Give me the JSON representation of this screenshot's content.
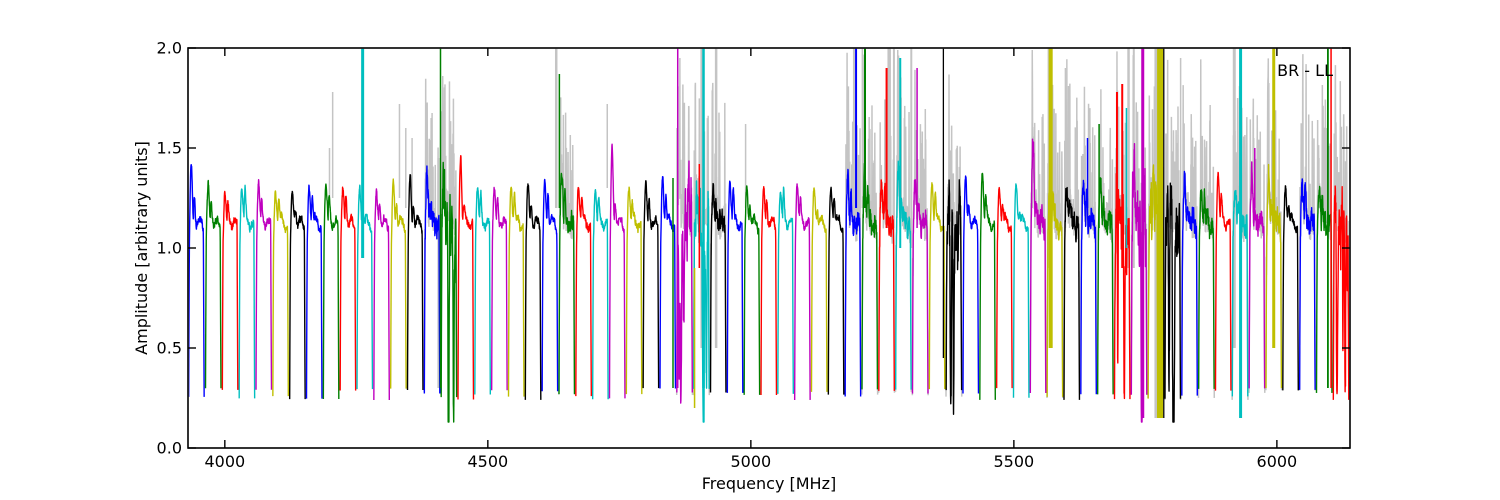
{
  "figure": {
    "bg": "#ffffff"
  },
  "chart_data": {
    "type": "line",
    "corner_label": "BR - LL",
    "xlabel": "Frequency [MHz]",
    "ylabel": "Amplitude [arbitrary units]",
    "xlim": [
      3930,
      6139
    ],
    "ylim": [
      0.0,
      2.0
    ],
    "xticks": [
      4000,
      4500,
      5000,
      5500,
      6000
    ],
    "yticks": [
      0.0,
      0.5,
      1.0,
      1.5,
      2.0
    ],
    "ytick_labels": [
      "0.0",
      "0.5",
      "1.0",
      "1.5",
      "2.0"
    ],
    "grid": false,
    "legend_position": "none",
    "axis_color": "#000000",
    "palette": {
      "b": "#0000ff",
      "g": "#008000",
      "r": "#ff0000",
      "c": "#00bfbf",
      "m": "#bf00bf",
      "y": "#bfbf00",
      "k": "#000000",
      "gray": "#c4c4c4"
    },
    "window_width_mhz": 32,
    "plateau_level": 1.2,
    "edge_level": 0.27,
    "windows": [
      {
        "s": 3930,
        "c": "b",
        "p": 1.42,
        "n": 0
      },
      {
        "s": 3962,
        "c": "g",
        "p": 1.32,
        "n": 0
      },
      {
        "s": 3994,
        "c": "r",
        "p": 1.27,
        "n": 0
      },
      {
        "s": 4026,
        "c": "c",
        "p": 1.3,
        "n": 0
      },
      {
        "s": 4058,
        "c": "m",
        "p": 1.33,
        "n": 0
      },
      {
        "s": 4090,
        "c": "y",
        "p": 1.28,
        "n": 0
      },
      {
        "s": 4122,
        "c": "k",
        "p": 1.28,
        "n": 0
      },
      {
        "s": 4154,
        "c": "b",
        "p": 1.3,
        "n": 0
      },
      {
        "s": 4186,
        "c": "g",
        "p": 1.32,
        "n": 0
      },
      {
        "s": 4218,
        "c": "r",
        "p": 1.3,
        "n": 0
      },
      {
        "s": 4250,
        "c": "c",
        "p": 1.3,
        "n": 0
      },
      {
        "s": 4282,
        "c": "m",
        "p": 1.28,
        "n": 0
      },
      {
        "s": 4314,
        "c": "y",
        "p": 1.33,
        "n": 0
      },
      {
        "s": 4346,
        "c": "k",
        "p": 1.36,
        "n": 0
      },
      {
        "s": 4378,
        "c": "b",
        "p": 1.38,
        "n": 1
      },
      {
        "s": 4410,
        "c": "g",
        "p": 1.4,
        "n": 2
      },
      {
        "s": 4442,
        "c": "r",
        "p": 1.45,
        "n": 0
      },
      {
        "s": 4474,
        "c": "c",
        "p": 1.3,
        "n": 0
      },
      {
        "s": 4506,
        "c": "m",
        "p": 1.3,
        "n": 0
      },
      {
        "s": 4538,
        "c": "y",
        "p": 1.3,
        "n": 0
      },
      {
        "s": 4570,
        "c": "k",
        "p": 1.32,
        "n": 0
      },
      {
        "s": 4602,
        "c": "b",
        "p": 1.33,
        "n": 0
      },
      {
        "s": 4634,
        "c": "g",
        "p": 1.4,
        "n": 1
      },
      {
        "s": 4666,
        "c": "r",
        "p": 1.3,
        "n": 0
      },
      {
        "s": 4698,
        "c": "c",
        "p": 1.28,
        "n": 0
      },
      {
        "s": 4730,
        "c": "m",
        "p": 1.5,
        "n": 0
      },
      {
        "s": 4762,
        "c": "y",
        "p": 1.3,
        "n": 0
      },
      {
        "s": 4794,
        "c": "k",
        "p": 1.33,
        "n": 0
      },
      {
        "s": 4826,
        "c": "b",
        "p": 1.35,
        "n": 0
      },
      {
        "s": 4858,
        "c": "m",
        "p": 1.35,
        "n": 2
      },
      {
        "s": 4890,
        "c": "c",
        "p": 1.3,
        "n": 2
      },
      {
        "s": 4922,
        "c": "k",
        "p": 1.3,
        "n": 1
      },
      {
        "s": 4954,
        "c": "b",
        "p": 1.33,
        "n": 0
      },
      {
        "s": 4986,
        "c": "g",
        "p": 1.3,
        "n": 0
      },
      {
        "s": 5018,
        "c": "r",
        "p": 1.3,
        "n": 0
      },
      {
        "s": 5050,
        "c": "c",
        "p": 1.28,
        "n": 0
      },
      {
        "s": 5082,
        "c": "m",
        "p": 1.32,
        "n": 0
      },
      {
        "s": 5114,
        "c": "y",
        "p": 1.3,
        "n": 0
      },
      {
        "s": 5146,
        "c": "k",
        "p": 1.3,
        "n": 0
      },
      {
        "s": 5178,
        "c": "b",
        "p": 1.35,
        "n": 1
      },
      {
        "s": 5210,
        "c": "g",
        "p": 1.38,
        "n": 1
      },
      {
        "s": 5242,
        "c": "r",
        "p": 1.32,
        "n": 1
      },
      {
        "s": 5274,
        "c": "c",
        "p": 1.4,
        "n": 1
      },
      {
        "s": 5306,
        "c": "m",
        "p": 1.35,
        "n": 1
      },
      {
        "s": 5338,
        "c": "y",
        "p": 1.32,
        "n": 0
      },
      {
        "s": 5370,
        "c": "k",
        "p": 1.3,
        "n": 2
      },
      {
        "s": 5402,
        "c": "b",
        "p": 1.35,
        "n": 0
      },
      {
        "s": 5434,
        "c": "g",
        "p": 1.38,
        "n": 0
      },
      {
        "s": 5466,
        "c": "r",
        "p": 1.3,
        "n": 0
      },
      {
        "s": 5498,
        "c": "c",
        "p": 1.32,
        "n": 0
      },
      {
        "s": 5530,
        "c": "m",
        "p": 1.55,
        "n": 1
      },
      {
        "s": 5562,
        "c": "y",
        "p": 1.35,
        "n": 1
      },
      {
        "s": 5594,
        "c": "k",
        "p": 1.3,
        "n": 1
      },
      {
        "s": 5626,
        "c": "b",
        "p": 1.33,
        "n": 1
      },
      {
        "s": 5658,
        "c": "g",
        "p": 1.33,
        "n": 1
      },
      {
        "s": 5690,
        "c": "r",
        "p": 1.38,
        "n": 2
      },
      {
        "s": 5722,
        "c": "m",
        "p": 1.35,
        "n": 2
      },
      {
        "s": 5754,
        "c": "y",
        "p": 1.3,
        "n": 2
      },
      {
        "s": 5786,
        "c": "k",
        "p": 1.3,
        "n": 2
      },
      {
        "s": 5818,
        "c": "b",
        "p": 1.35,
        "n": 1
      },
      {
        "s": 5850,
        "c": "g",
        "p": 1.26,
        "n": 1
      },
      {
        "s": 5882,
        "c": "r",
        "p": 1.38,
        "n": 0
      },
      {
        "s": 5914,
        "c": "c",
        "p": 1.3,
        "n": 1
      },
      {
        "s": 5946,
        "c": "m",
        "p": 1.38,
        "n": 1
      },
      {
        "s": 5978,
        "c": "y",
        "p": 1.35,
        "n": 1
      },
      {
        "s": 6010,
        "c": "k",
        "p": 1.3,
        "n": 0
      },
      {
        "s": 6042,
        "c": "b",
        "p": 1.32,
        "n": 1
      },
      {
        "s": 6074,
        "c": "g",
        "p": 1.3,
        "n": 1
      },
      {
        "s": 6106,
        "c": "r",
        "p": 1.35,
        "n": 2
      }
    ],
    "spikes": [
      {
        "f": 4199,
        "a": 1.2,
        "b": 1.5,
        "c": "gray",
        "w": 1.5
      },
      {
        "f": 4205,
        "a": 1.25,
        "b": 1.78,
        "c": "gray",
        "w": 1.5
      },
      {
        "f": 4262,
        "a": 0.95,
        "b": 2.0,
        "c": "c",
        "w": 3
      },
      {
        "f": 4332,
        "a": 1.25,
        "b": 1.72,
        "c": "gray",
        "w": 1.5
      },
      {
        "f": 4344,
        "a": 1.2,
        "b": 1.6,
        "c": "gray",
        "w": 1.5
      },
      {
        "f": 4356,
        "a": 1.2,
        "b": 1.55,
        "c": "gray",
        "w": 1.5
      },
      {
        "f": 4406,
        "a": 0.3,
        "b": 1.45,
        "c": "gray",
        "w": 2
      },
      {
        "f": 4410,
        "a": 0.3,
        "b": 2.0,
        "c": "g",
        "w": 1.5
      },
      {
        "f": 4630,
        "a": 1.2,
        "b": 2.0,
        "c": "gray",
        "w": 2.5
      },
      {
        "f": 4636,
        "a": 1.2,
        "b": 1.87,
        "c": "g",
        "w": 1.5
      },
      {
        "f": 4727,
        "a": 1.3,
        "b": 1.72,
        "c": "gray",
        "w": 1.5
      },
      {
        "f": 4852,
        "a": 0.3,
        "b": 1.35,
        "c": "g",
        "w": 1.5
      },
      {
        "f": 4860,
        "a": 0.5,
        "b": 1.6,
        "c": "gray",
        "w": 2
      },
      {
        "f": 4861,
        "a": 0.3,
        "b": 2.0,
        "c": "m",
        "w": 1.5
      },
      {
        "f": 4893,
        "a": 0.2,
        "b": 0.9,
        "c": "y",
        "w": 1.5
      },
      {
        "f": 4902,
        "a": 0.9,
        "b": 1.42,
        "c": "r",
        "w": 1.5
      },
      {
        "f": 4906,
        "a": 0.5,
        "b": 2.0,
        "c": "gray",
        "w": 2
      },
      {
        "f": 4910,
        "a": 0.3,
        "b": 2.0,
        "c": "c",
        "w": 2.5
      },
      {
        "f": 4934,
        "a": 0.5,
        "b": 2.0,
        "c": "gray",
        "w": 2.5
      },
      {
        "f": 4990,
        "a": 1.2,
        "b": 1.62,
        "c": "gray",
        "w": 1.5
      },
      {
        "f": 5196,
        "a": 1.15,
        "b": 2.0,
        "c": "gray",
        "w": 2
      },
      {
        "f": 5200,
        "a": 1.2,
        "b": 2.0,
        "c": "b",
        "w": 2
      },
      {
        "f": 5212,
        "a": 1.2,
        "b": 2.0,
        "c": "gray",
        "w": 1.5
      },
      {
        "f": 5217,
        "a": 1.2,
        "b": 2.0,
        "c": "g",
        "w": 2
      },
      {
        "f": 5258,
        "a": 1.1,
        "b": 1.9,
        "c": "r",
        "w": 2
      },
      {
        "f": 5263,
        "a": 1.1,
        "b": 2.0,
        "c": "gray",
        "w": 3.5
      },
      {
        "f": 5272,
        "a": 1.1,
        "b": 2.0,
        "c": "gray",
        "w": 2
      },
      {
        "f": 5284,
        "a": 1.0,
        "b": 1.95,
        "c": "c",
        "w": 2
      },
      {
        "f": 5305,
        "a": 1.0,
        "b": 2.0,
        "c": "gray",
        "w": 2
      },
      {
        "f": 5316,
        "a": 1.1,
        "b": 1.9,
        "c": "m",
        "w": 1.5
      },
      {
        "f": 5366,
        "a": 0.45,
        "b": 2.0,
        "c": "k",
        "w": 1.3
      },
      {
        "f": 5535,
        "a": 1.2,
        "b": 1.8,
        "c": "gray",
        "w": 1.5
      },
      {
        "f": 5566,
        "a": 0.9,
        "b": 2.0,
        "c": "gray",
        "w": 2
      },
      {
        "f": 5570,
        "a": 0.5,
        "b": 2.0,
        "c": "y",
        "w": 4
      },
      {
        "f": 5598,
        "a": 1.1,
        "b": 1.9,
        "c": "gray",
        "w": 1.5
      },
      {
        "f": 5606,
        "a": 1.1,
        "b": 1.75,
        "c": "gray",
        "w": 1.5
      },
      {
        "f": 5640,
        "a": 1.2,
        "b": 1.55,
        "c": "b",
        "w": 1.5
      },
      {
        "f": 5662,
        "a": 1.1,
        "b": 1.62,
        "c": "g",
        "w": 1.5
      },
      {
        "f": 5696,
        "a": 1.1,
        "b": 1.78,
        "c": "r",
        "w": 2
      },
      {
        "f": 5706,
        "a": 0.9,
        "b": 1.82,
        "c": "r",
        "w": 2
      },
      {
        "f": 5714,
        "a": 1.0,
        "b": 1.7,
        "c": "c",
        "w": 1.5
      },
      {
        "f": 5718,
        "a": 0.9,
        "b": 2.0,
        "c": "gray",
        "w": 2.5
      },
      {
        "f": 5728,
        "a": 0.9,
        "b": 2.0,
        "c": "gray",
        "w": 2
      },
      {
        "f": 5745,
        "a": 0.15,
        "b": 2.0,
        "c": "m",
        "w": 3
      },
      {
        "f": 5772,
        "a": 0.15,
        "b": 2.0,
        "c": "gray",
        "w": 5
      },
      {
        "f": 5778,
        "a": 0.15,
        "b": 2.0,
        "c": "y",
        "w": 6
      },
      {
        "f": 5785,
        "a": 0.15,
        "b": 2.0,
        "c": "k",
        "w": 1.3
      },
      {
        "f": 5817,
        "a": 0.5,
        "b": 1.95,
        "c": "gray",
        "w": 1.5
      },
      {
        "f": 5919,
        "a": 0.5,
        "b": 2.0,
        "c": "gray",
        "w": 3
      },
      {
        "f": 5931,
        "a": 0.15,
        "b": 2.0,
        "c": "c",
        "w": 3
      },
      {
        "f": 5956,
        "a": 1.1,
        "b": 1.55,
        "c": "gray",
        "w": 1.5
      },
      {
        "f": 5958,
        "a": 1.2,
        "b": 1.5,
        "c": "m",
        "w": 1.5
      },
      {
        "f": 5994,
        "a": 0.5,
        "b": 2.0,
        "c": "y",
        "w": 3
      },
      {
        "f": 6080,
        "a": 1.2,
        "b": 1.45,
        "c": "gray",
        "w": 1.5
      },
      {
        "f": 6087,
        "a": 1.2,
        "b": 1.4,
        "c": "gray",
        "w": 1.5
      },
      {
        "f": 6097,
        "a": 0.3,
        "b": 2.0,
        "c": "g",
        "w": 1.8
      },
      {
        "f": 6103,
        "a": 0.3,
        "b": 2.0,
        "c": "r",
        "w": 1.5
      }
    ]
  }
}
